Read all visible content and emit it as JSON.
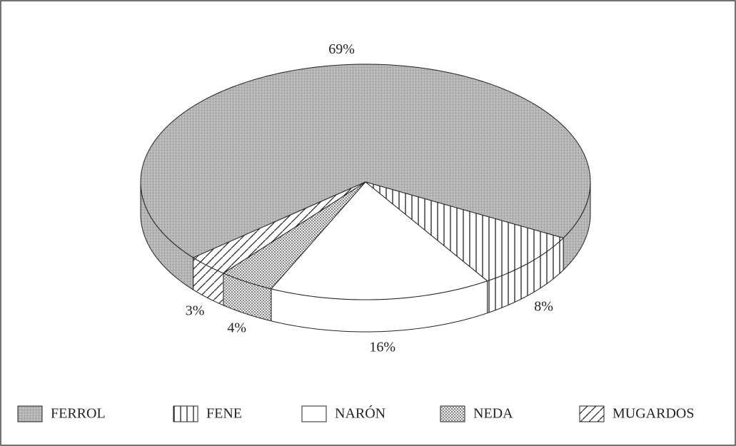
{
  "chart_data": {
    "type": "pie",
    "categories": [
      "FERROL",
      "FENE",
      "NARÓN",
      "NEDA",
      "MUGARDOS"
    ],
    "values": [
      69,
      8,
      16,
      4,
      3
    ],
    "value_labels": [
      "69%",
      "8%",
      "16%",
      "4%",
      "3%"
    ],
    "patterns": [
      "gray",
      "vertical",
      "white",
      "dots",
      "diagonal"
    ],
    "legend": "bottom"
  }
}
